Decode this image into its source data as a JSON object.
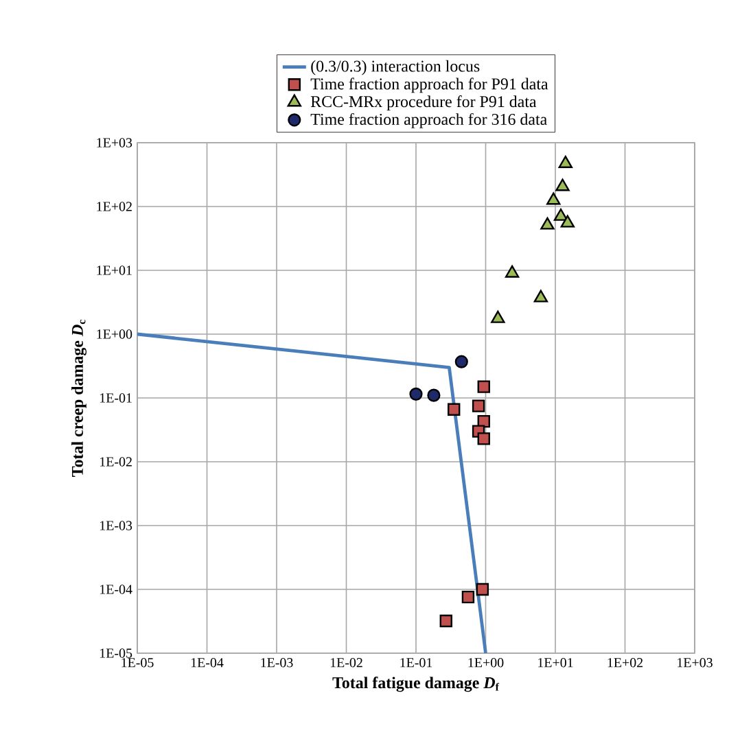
{
  "chart_data": {
    "type": "scatter",
    "xlabel": "Total fatigue damage *D*$_{f}$",
    "ylabel": "Total creep damage *D*$_{c}$",
    "log": "xy",
    "grid": true,
    "legend": "top",
    "xlim": [
      1e-05,
      1000
    ],
    "ylim": [
      1e-05,
      1000
    ],
    "xticks": [
      {
        "value": 1e-05,
        "label": "1E-05"
      },
      {
        "value": 0.0001,
        "label": "1E-04"
      },
      {
        "value": 0.001,
        "label": "1E-03"
      },
      {
        "value": 0.01,
        "label": "1E-02"
      },
      {
        "value": 0.1,
        "label": "1E-01"
      },
      {
        "value": 1,
        "label": "1E+00"
      },
      {
        "value": 10,
        "label": "1E+01"
      },
      {
        "value": 100,
        "label": "1E+02"
      },
      {
        "value": 1000,
        "label": "1E+03"
      }
    ],
    "yticks": [
      {
        "value": 1e-05,
        "label": "1E-05"
      },
      {
        "value": 0.0001,
        "label": "1E-04"
      },
      {
        "value": 0.001,
        "label": "1E-03"
      },
      {
        "value": 0.01,
        "label": "1E-02"
      },
      {
        "value": 0.1,
        "label": "1E-01"
      },
      {
        "value": 1,
        "label": "1E+00"
      },
      {
        "value": 10,
        "label": "1E+01"
      },
      {
        "value": 100,
        "label": "1E+02"
      },
      {
        "value": 1000,
        "label": "1E+03"
      }
    ],
    "series": [
      {
        "name": "(0.3/0.3) interaction locus",
        "type": "line",
        "color": "#4a7ebb",
        "marker": "none",
        "line_style": "solid",
        "x": [
          1e-05,
          0.3,
          1
        ],
        "values": [
          1,
          0.3,
          1e-05
        ]
      },
      {
        "name": "Time fraction approach for P91 data",
        "color": "#c0504d",
        "marker": "square",
        "x": [
          0.35,
          0.94,
          0.79,
          0.94,
          0.79,
          0.94,
          0.27,
          0.56,
          0.9
        ],
        "values": [
          0.066,
          0.15,
          0.075,
          0.043,
          0.03,
          0.023,
          3.2e-05,
          7.6e-05,
          0.0001
        ]
      },
      {
        "name": "RCC-MRx procedure for P91 data",
        "color": "#9bbb59",
        "marker": "triangle",
        "x": [
          2.4,
          6.2,
          1.5,
          14,
          12.7,
          9.4,
          12,
          15,
          7.7
        ],
        "values": [
          9,
          3.7,
          1.75,
          470,
          205,
          125,
          70,
          55,
          51
        ]
      },
      {
        "name": "Time fraction approach for 316 data",
        "color": "#1f2a6b",
        "marker": "circle",
        "x": [
          0.45,
          0.1,
          0.18
        ],
        "values": [
          0.37,
          0.115,
          0.11
        ]
      }
    ]
  }
}
